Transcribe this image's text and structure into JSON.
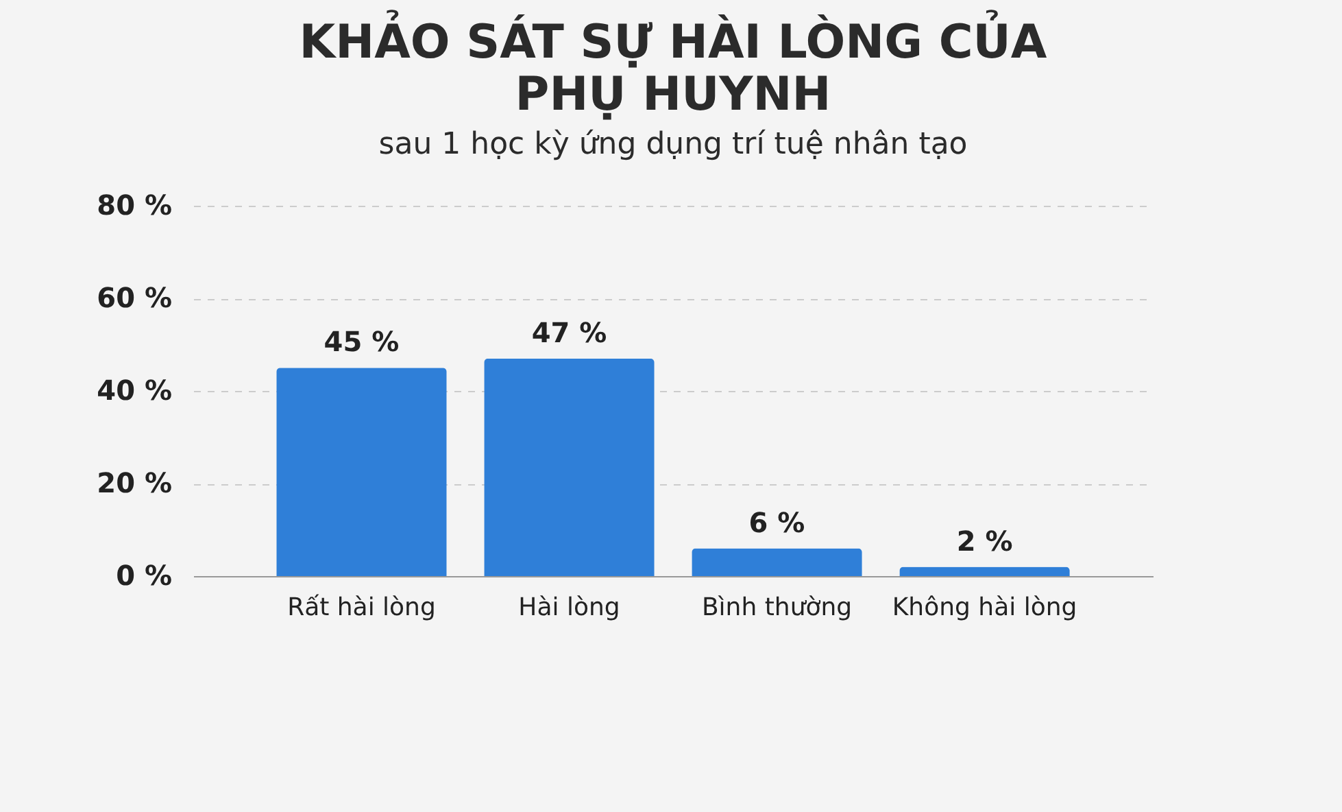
{
  "chart_data": {
    "type": "bar",
    "title": "KHẢO SÁT SỰ HÀI LÒNG CỦA\nPHỤ HUYNH",
    "subtitle": "sau 1 học kỳ ứng dụng trí tuệ nhân tạo",
    "categories": [
      "Rất hài lòng",
      "Hài lòng",
      "Bình thường",
      "Không hài lòng"
    ],
    "values": [
      45,
      47,
      6,
      2
    ],
    "color": "#2f7fd8",
    "value_labels": [
      "45 %",
      "47 %",
      "6 %",
      "2 %"
    ],
    "ylim": [
      0,
      80
    ],
    "yticks": [
      {
        "value": 0,
        "label": "0 %"
      },
      {
        "value": 20,
        "label": "20 %"
      },
      {
        "value": 40,
        "label": "40 %"
      },
      {
        "value": 60,
        "label": "60 %"
      },
      {
        "value": 80,
        "label": "80 %"
      }
    ],
    "grid": "y"
  }
}
